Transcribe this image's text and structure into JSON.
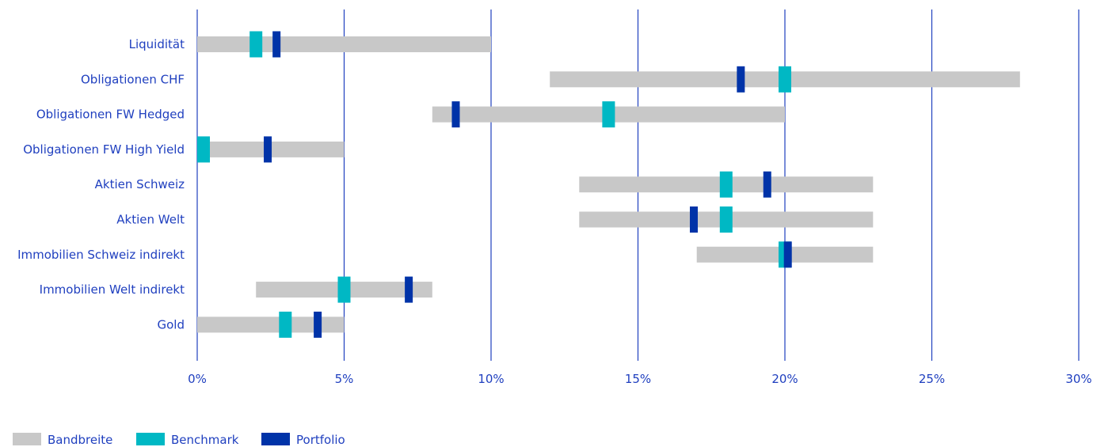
{
  "chart_data": {
    "type": "range-bar",
    "categories": [
      "Liquidität",
      "Obligationen CHF",
      "Obligationen FW Hedged",
      "Obligationen FW High Yield",
      "Aktien Schweiz",
      "Aktien Welt",
      "Immobilien Schweiz indirekt",
      "Immobilien Welt indirekt",
      "Gold"
    ],
    "series": [
      {
        "name": "Bandbreite",
        "color": "#c8c8c8",
        "ranges": [
          [
            0,
            10
          ],
          [
            12,
            28
          ],
          [
            8,
            20
          ],
          [
            0,
            5
          ],
          [
            13,
            23
          ],
          [
            13,
            23
          ],
          [
            17,
            23
          ],
          [
            2,
            8
          ],
          [
            0,
            5
          ]
        ]
      },
      {
        "name": "Benchmark",
        "color": "#00b8c4",
        "values": [
          2,
          20,
          14,
          0,
          18,
          18,
          20,
          5,
          3
        ]
      },
      {
        "name": "Portfolio",
        "color": "#0033a8",
        "values": [
          2.7,
          18.5,
          8.8,
          2.4,
          19.4,
          16.9,
          20.1,
          7.2,
          4.1
        ]
      }
    ],
    "x_ticks": [
      "0%",
      "5%",
      "10%",
      "15%",
      "20%",
      "25%",
      "30%"
    ],
    "x_tick_values": [
      0,
      5,
      10,
      15,
      20,
      25,
      30
    ],
    "xlim": [
      0,
      30
    ],
    "grid": "vertical",
    "legend": "bottom-left",
    "axis_color": "#1f3fbf"
  }
}
